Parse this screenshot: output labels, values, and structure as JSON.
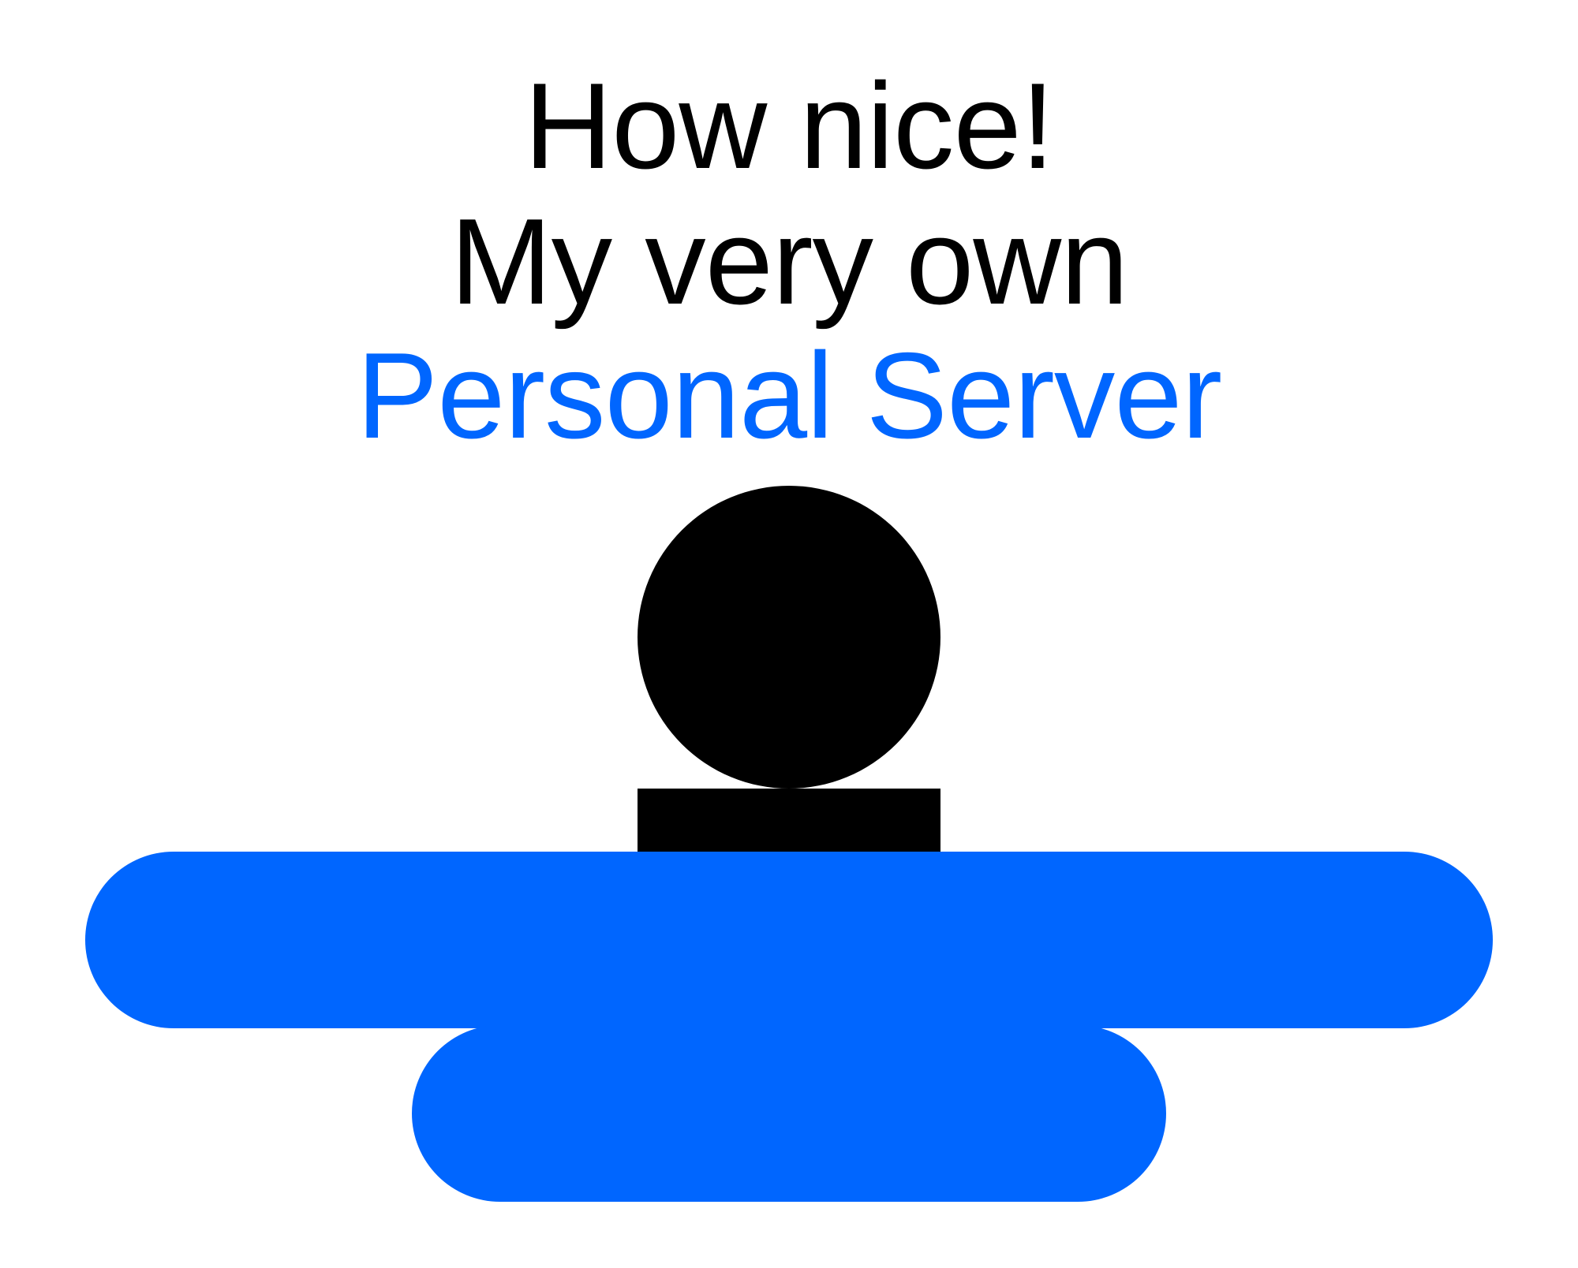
{
  "headline": {
    "line1": "How nice!",
    "line2": "My very own",
    "line3": "Personal Server"
  },
  "colors": {
    "background": "#ffffff",
    "text": "#000000",
    "accent": "#0066ff",
    "figure": "#000000"
  },
  "illustration": {
    "description_icon": "person-with-server-icon"
  }
}
